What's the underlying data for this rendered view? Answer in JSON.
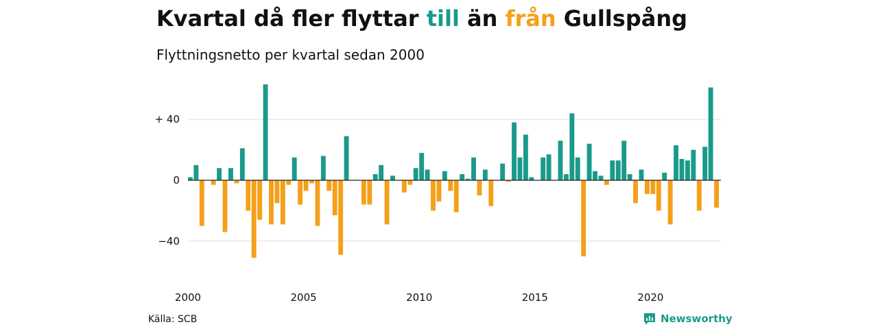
{
  "header": {
    "title_part1": "Kvartal då fler flyttar ",
    "title_pos": "till",
    "title_part2": " än ",
    "title_neg": "från",
    "title_part3": " Gullspång",
    "subtitle": "Flyttningsnetto per kvartal sedan 2000"
  },
  "colors": {
    "positive": "#1a9a8a",
    "negative": "#f5a01a",
    "grid": "#dddddd"
  },
  "footer": {
    "source": "Källa: SCB",
    "brand": "Newsworthy",
    "brand_icon": "newsworthy-logo-icon"
  },
  "chart_data": {
    "type": "bar",
    "title": "",
    "xlabel": "",
    "ylabel": "",
    "x_ticks": [
      2000,
      2005,
      2010,
      2015,
      2020
    ],
    "y_ticks": [
      {
        "value": 40,
        "label": "+ 40"
      },
      {
        "value": 0,
        "label": "0"
      },
      {
        "value": -40,
        "label": "−40"
      }
    ],
    "ylim": [
      -60,
      65
    ],
    "grid": true,
    "start_year": 2000,
    "values": [
      2,
      10,
      -30,
      0,
      -3,
      8,
      -34,
      8,
      -2,
      21,
      -20,
      -51,
      -26,
      63,
      -29,
      -15,
      -29,
      -3,
      15,
      -16,
      -7,
      -2,
      -30,
      16,
      -7,
      -23,
      -49,
      29,
      0,
      0,
      -16,
      -16,
      4,
      10,
      -29,
      3,
      0,
      -8,
      -3,
      8,
      18,
      7,
      -20,
      -14,
      6,
      -7,
      -21,
      4,
      1,
      15,
      -10,
      7,
      -17,
      0,
      11,
      -1,
      38,
      15,
      30,
      2,
      0,
      15,
      17,
      0,
      26,
      4,
      44,
      15,
      -50,
      24,
      6,
      3,
      -3,
      13,
      13,
      26,
      4,
      -15,
      7,
      -9,
      -9,
      -20,
      5,
      -29,
      23,
      14,
      13,
      20,
      -20,
      22,
      61,
      -18
    ]
  }
}
